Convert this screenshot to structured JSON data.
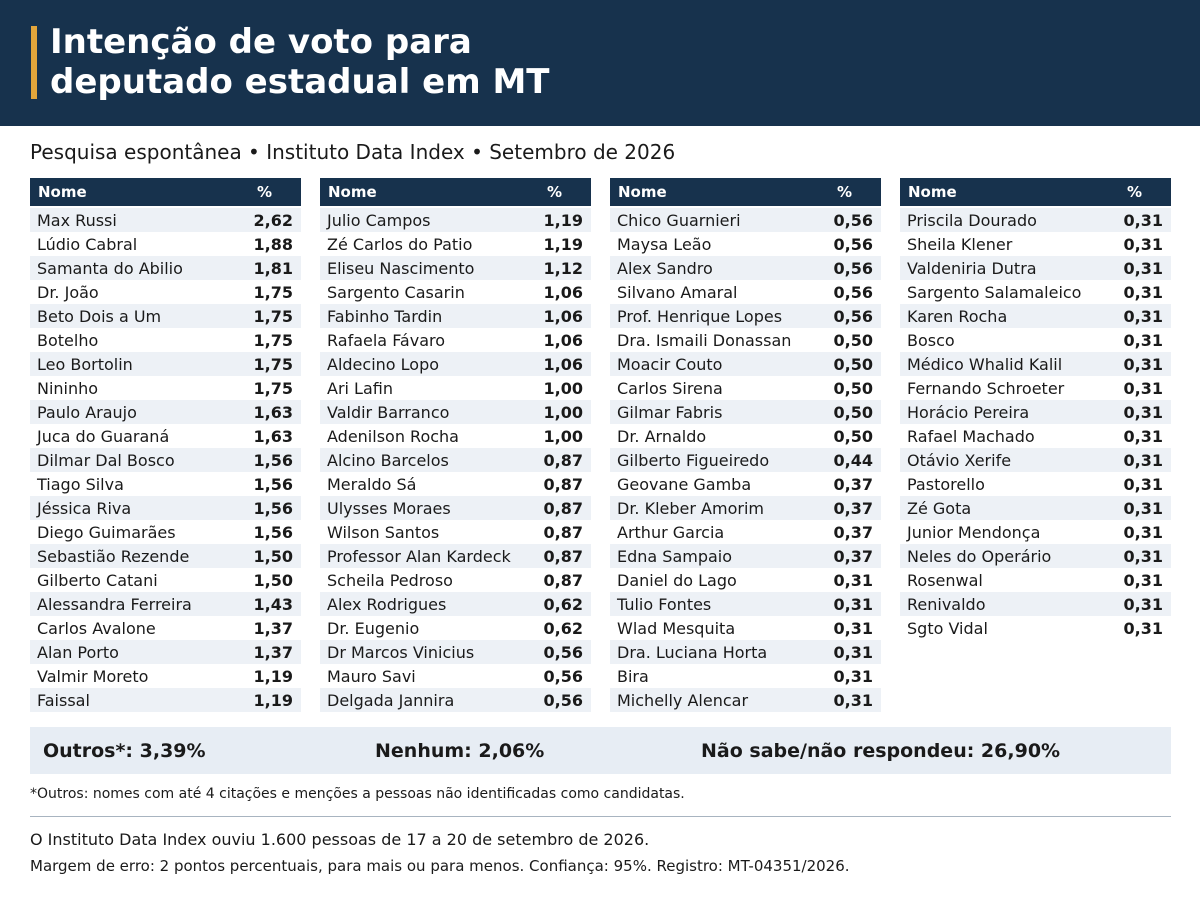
{
  "header": {
    "title_line1": "Intenção de voto para",
    "title_line2": "deputado estadual em MT",
    "accent_color": "#e3a63b",
    "background_color": "#17324d"
  },
  "subtitle": "Pesquisa espontânea • Instituto Data Index • Setembro de 2026",
  "columns_header": {
    "name": "Nome",
    "pct": "%"
  },
  "tables": [
    {
      "rows": [
        {
          "name": "Max Russi",
          "pct": "2,62"
        },
        {
          "name": "Lúdio Cabral",
          "pct": "1,88"
        },
        {
          "name": "Samanta do Abilio",
          "pct": "1,81"
        },
        {
          "name": "Dr. João",
          "pct": "1,75"
        },
        {
          "name": "Beto Dois a Um",
          "pct": "1,75"
        },
        {
          "name": "Botelho",
          "pct": "1,75"
        },
        {
          "name": "Leo Bortolin",
          "pct": "1,75"
        },
        {
          "name": "Nininho",
          "pct": "1,75"
        },
        {
          "name": "Paulo Araujo",
          "pct": "1,63"
        },
        {
          "name": "Juca do Guaraná",
          "pct": "1,63"
        },
        {
          "name": "Dilmar Dal Bosco",
          "pct": "1,56"
        },
        {
          "name": "Tiago Silva",
          "pct": "1,56"
        },
        {
          "name": "Jéssica Riva",
          "pct": "1,56"
        },
        {
          "name": "Diego Guimarães",
          "pct": "1,56"
        },
        {
          "name": "Sebastião Rezende",
          "pct": "1,50"
        },
        {
          "name": "Gilberto Catani",
          "pct": "1,50"
        },
        {
          "name": "Alessandra Ferreira",
          "pct": "1,43"
        },
        {
          "name": "Carlos Avalone",
          "pct": "1,37"
        },
        {
          "name": "Alan Porto",
          "pct": "1,37"
        },
        {
          "name": "Valmir Moreto",
          "pct": "1,19"
        },
        {
          "name": "Faissal",
          "pct": "1,19"
        }
      ]
    },
    {
      "rows": [
        {
          "name": "Julio Campos",
          "pct": "1,19"
        },
        {
          "name": "Zé Carlos do Patio",
          "pct": "1,19"
        },
        {
          "name": "Eliseu Nascimento",
          "pct": "1,12"
        },
        {
          "name": "Sargento Casarin",
          "pct": "1,06"
        },
        {
          "name": "Fabinho Tardin",
          "pct": "1,06"
        },
        {
          "name": "Rafaela Fávaro",
          "pct": "1,06"
        },
        {
          "name": "Aldecino Lopo",
          "pct": "1,06"
        },
        {
          "name": "Ari Lafin",
          "pct": "1,00"
        },
        {
          "name": "Valdir Barranco",
          "pct": "1,00"
        },
        {
          "name": "Adenilson Rocha",
          "pct": "1,00"
        },
        {
          "name": "Alcino Barcelos",
          "pct": "0,87"
        },
        {
          "name": "Meraldo Sá",
          "pct": "0,87"
        },
        {
          "name": "Ulysses Moraes",
          "pct": "0,87"
        },
        {
          "name": "Wilson Santos",
          "pct": "0,87"
        },
        {
          "name": "Professor Alan Kardeck",
          "pct": "0,87"
        },
        {
          "name": "Scheila Pedroso",
          "pct": "0,87"
        },
        {
          "name": "Alex Rodrigues",
          "pct": "0,62"
        },
        {
          "name": "Dr. Eugenio",
          "pct": "0,62"
        },
        {
          "name": "Dr Marcos Vinicius",
          "pct": "0,56"
        },
        {
          "name": "Mauro Savi",
          "pct": "0,56"
        },
        {
          "name": "Delgada Jannira",
          "pct": "0,56"
        }
      ]
    },
    {
      "rows": [
        {
          "name": "Chico Guarnieri",
          "pct": "0,56"
        },
        {
          "name": "Maysa Leão",
          "pct": "0,56"
        },
        {
          "name": "Alex Sandro",
          "pct": "0,56"
        },
        {
          "name": "Silvano Amaral",
          "pct": "0,56"
        },
        {
          "name": "Prof. Henrique Lopes",
          "pct": "0,56"
        },
        {
          "name": "Dra. Ismaili Donassan",
          "pct": "0,50"
        },
        {
          "name": "Moacir Couto",
          "pct": "0,50"
        },
        {
          "name": "Carlos Sirena",
          "pct": "0,50"
        },
        {
          "name": "Gilmar Fabris",
          "pct": "0,50"
        },
        {
          "name": "Dr. Arnaldo",
          "pct": "0,50"
        },
        {
          "name": "Gilberto Figueiredo",
          "pct": "0,44"
        },
        {
          "name": "Geovane Gamba",
          "pct": "0,37"
        },
        {
          "name": "Dr. Kleber Amorim",
          "pct": "0,37"
        },
        {
          "name": "Arthur Garcia",
          "pct": "0,37"
        },
        {
          "name": "Edna Sampaio",
          "pct": "0,37"
        },
        {
          "name": "Daniel do Lago",
          "pct": "0,31"
        },
        {
          "name": "Tulio Fontes",
          "pct": "0,31"
        },
        {
          "name": "Wlad Mesquita",
          "pct": "0,31"
        },
        {
          "name": "Dra. Luciana Horta",
          "pct": "0,31"
        },
        {
          "name": "Bira",
          "pct": "0,31"
        },
        {
          "name": "Michelly Alencar",
          "pct": "0,31"
        }
      ]
    },
    {
      "rows": [
        {
          "name": "Priscila Dourado",
          "pct": "0,31"
        },
        {
          "name": "Sheila Klener",
          "pct": "0,31"
        },
        {
          "name": "Valdeniria Dutra",
          "pct": "0,31"
        },
        {
          "name": "Sargento Salamaleico",
          "pct": "0,31"
        },
        {
          "name": "Karen Rocha",
          "pct": "0,31"
        },
        {
          "name": "Bosco",
          "pct": "0,31"
        },
        {
          "name": "Médico Whalid Kalil",
          "pct": "0,31"
        },
        {
          "name": "Fernando Schroeter",
          "pct": "0,31"
        },
        {
          "name": "Horácio Pereira",
          "pct": "0,31"
        },
        {
          "name": "Rafael Machado",
          "pct": "0,31"
        },
        {
          "name": "Otávio Xerife",
          "pct": "0,31"
        },
        {
          "name": "Pastorello",
          "pct": "0,31"
        },
        {
          "name": "Zé Gota",
          "pct": "0,31"
        },
        {
          "name": "Junior Mendonça",
          "pct": "0,31"
        },
        {
          "name": "Neles do Operário",
          "pct": "0,31"
        },
        {
          "name": "Rosenwal",
          "pct": "0,31"
        },
        {
          "name": "Renivaldo",
          "pct": "0,31"
        },
        {
          "name": "Sgto Vidal",
          "pct": "0,31"
        }
      ]
    }
  ],
  "summary": {
    "outros": "Outros*: 3,39%",
    "nenhum": "Nenhum: 2,06%",
    "nao_sabe": "Não sabe/não respondeu: 26,90%"
  },
  "note": "*Outros: nomes com até 4 citações e menções a pessoas não identificadas como candidatas.",
  "footer": {
    "line1": "O Instituto Data Index ouviu 1.600 pessoas de 17 a 20 de setembro de 2026.",
    "line2": "Margem de erro: 2 pontos percentuais, para mais ou para menos. Confiança: 95%. Registro: MT-04351/2026."
  }
}
